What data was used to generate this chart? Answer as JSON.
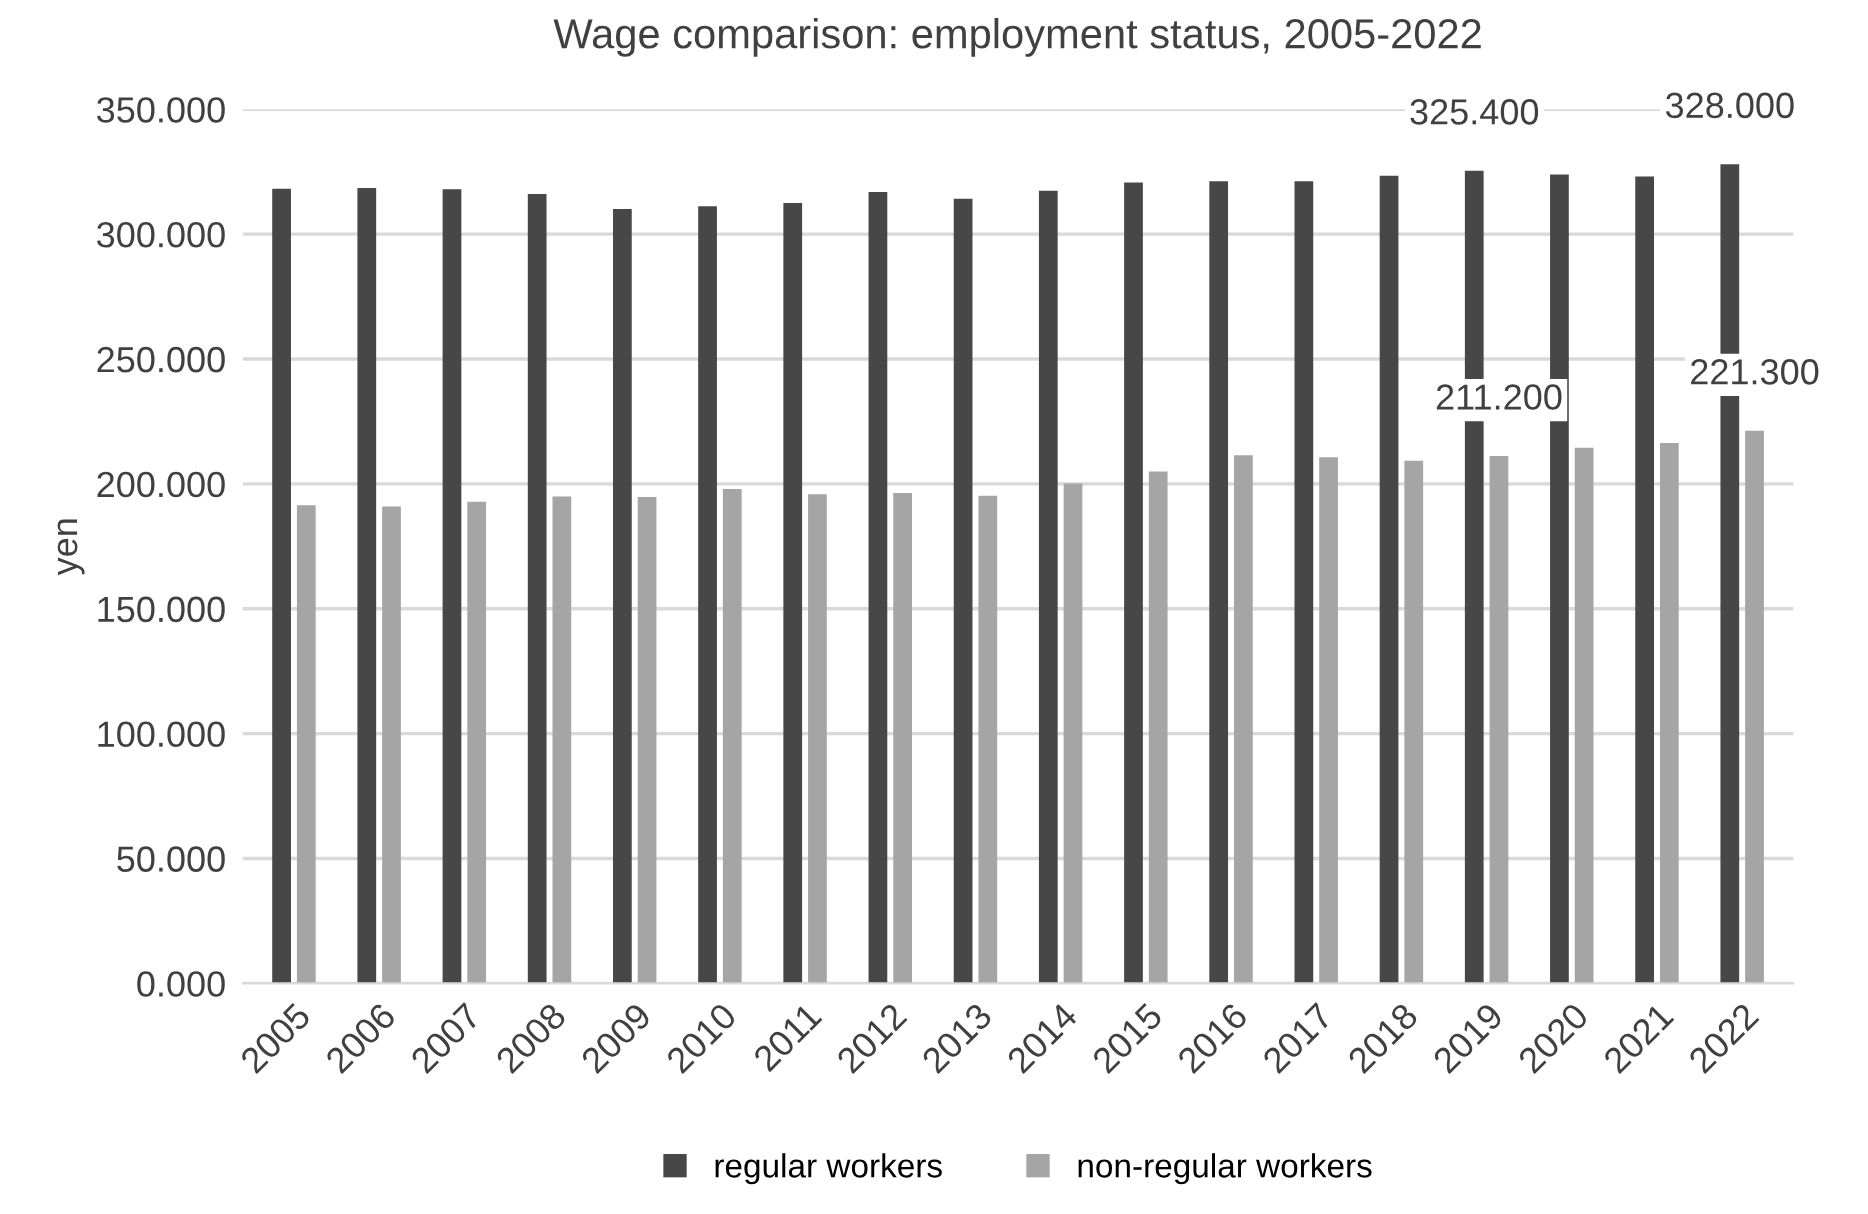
{
  "chart_data": {
    "type": "bar",
    "title": "Wage comparison: employment status, 2005-2022",
    "ylabel": "yen",
    "categories": [
      "2005",
      "2006",
      "2007",
      "2008",
      "2009",
      "2010",
      "2011",
      "2012",
      "2013",
      "2014",
      "2015",
      "2016",
      "2017",
      "2018",
      "2019",
      "2020",
      "2021",
      "2022"
    ],
    "series": [
      {
        "name": "regular workers",
        "color": "#474747",
        "values": [
          318.2,
          318.5,
          318.0,
          316.1,
          310.1,
          311.2,
          312.5,
          316.9,
          314.2,
          317.4,
          320.7,
          321.2,
          321.2,
          323.4,
          325.4,
          323.9,
          323.1,
          328.0
        ],
        "value_labels": [
          null,
          null,
          null,
          null,
          null,
          null,
          null,
          null,
          null,
          null,
          null,
          null,
          null,
          null,
          "325.400",
          null,
          null,
          "328.000"
        ]
      },
      {
        "name": "non-regular workers",
        "color": "#a5a5a5",
        "values": [
          191.4,
          190.9,
          192.8,
          194.9,
          194.7,
          197.9,
          195.8,
          196.3,
          195.2,
          200.1,
          205.0,
          211.5,
          210.7,
          209.3,
          211.2,
          214.5,
          216.4,
          221.3
        ],
        "value_labels": [
          null,
          null,
          null,
          null,
          null,
          null,
          null,
          null,
          null,
          null,
          null,
          null,
          null,
          null,
          "211.200",
          null,
          null,
          "221.300"
        ]
      }
    ],
    "ylim": [
      0,
      350
    ],
    "yticks": [
      {
        "value": 0,
        "label": "0.000"
      },
      {
        "value": 50,
        "label": "50.000"
      },
      {
        "value": 100,
        "label": "100.000"
      },
      {
        "value": 150,
        "label": "150.000"
      },
      {
        "value": 200,
        "label": "200.000"
      },
      {
        "value": 250,
        "label": "250.000"
      },
      {
        "value": 300,
        "label": "300.000"
      },
      {
        "value": 350,
        "label": "350.000"
      }
    ],
    "grid": "y",
    "legend": "bottom"
  }
}
